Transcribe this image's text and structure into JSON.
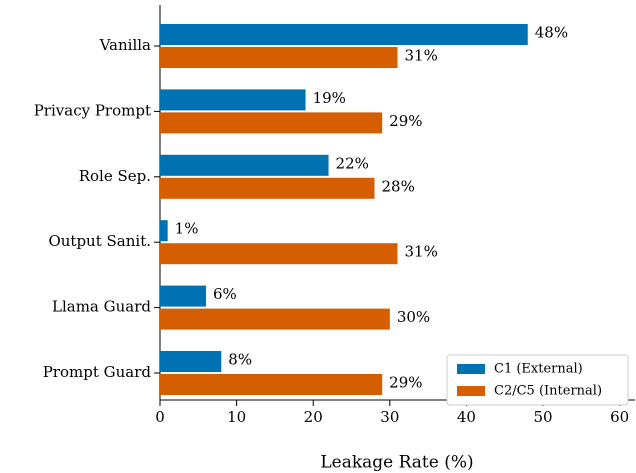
{
  "chart_data": {
    "type": "hbar",
    "xlabel": "Leakage Rate (%)",
    "categories": [
      "Vanilla",
      "Privacy Prompt",
      "Role Sep.",
      "Output Sanit.",
      "Llama Guard",
      "Prompt Guard"
    ],
    "series": [
      {
        "name": "C1 (External)",
        "color": "#0072b2",
        "values": [
          48,
          19,
          22,
          1,
          6,
          8
        ],
        "value_labels": [
          "48%",
          "19%",
          "22%",
          "1%",
          "6%",
          "8%"
        ]
      },
      {
        "name": "C2/C5 (Internal)",
        "color": "#d55e00",
        "values": [
          31,
          29,
          28,
          31,
          30,
          29
        ],
        "value_labels": [
          "31%",
          "29%",
          "28%",
          "31%",
          "30%",
          "29%"
        ]
      }
    ],
    "xlim": [
      0,
      62
    ],
    "xticks": [
      0,
      10,
      20,
      30,
      40,
      50,
      60
    ],
    "legend": "lower right"
  }
}
